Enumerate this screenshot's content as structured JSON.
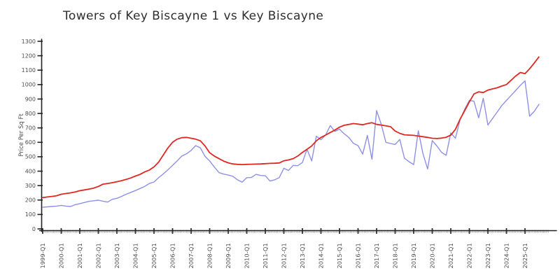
{
  "title": "Towers of Key Biscayne 1 vs Key Biscayne",
  "chart_data": {
    "type": "line",
    "title": "Towers of Key Biscayne 1 vs Key Biscayne",
    "xlabel": "",
    "ylabel": "Price Per Sq Ft",
    "ylim": [
      0,
      1300
    ],
    "y_ticks": [
      0,
      100,
      200,
      300,
      400,
      500,
      600,
      700,
      800,
      900,
      1000,
      1100,
      1200,
      1300
    ],
    "x_tick_labels": [
      "1999-Q1",
      "2000-Q1",
      "2001-Q1",
      "2002-Q1",
      "2003-Q1",
      "2004-Q1",
      "2005-Q1",
      "2006-Q1",
      "2007-Q1",
      "2008-Q1",
      "2009-Q1",
      "2010-Q1",
      "2011-Q1",
      "2012-Q1",
      "2013-Q1",
      "2014-Q1",
      "2015-Q1",
      "2016-Q1",
      "2017-Q1",
      "2018-Q1",
      "2019-Q1",
      "2020-Q1",
      "2021-Q1",
      "2022-Q1",
      "2023-Q1",
      "2024-Q1",
      "2025-Q1"
    ],
    "x_start_year": 1999.0,
    "x_step_years": 0.25,
    "grid": false,
    "legend_position": "none",
    "style": "xkcd-sketch",
    "axis_color": "#222222",
    "tick_label_color": "#4d4d4d",
    "series": [
      {
        "name": "Towers of Key Biscayne 1",
        "color": "#8e90e8",
        "values": [
          150,
          153,
          155,
          158,
          163,
          158,
          155,
          168,
          175,
          183,
          191,
          195,
          199,
          192,
          186,
          205,
          212,
          225,
          240,
          253,
          266,
          280,
          295,
          315,
          325,
          355,
          381,
          410,
          440,
          471,
          505,
          520,
          544,
          577,
          561,
          503,
          470,
          430,
          390,
          380,
          373,
          365,
          340,
          324,
          355,
          356,
          378,
          370,
          368,
          332,
          340,
          355,
          420,
          405,
          440,
          438,
          460,
          552,
          471,
          642,
          618,
          650,
          716,
          675,
          691,
          659,
          634,
          593,
          577,
          518,
          648,
          482,
          820,
          725,
          600,
          592,
          585,
          620,
          490,
          465,
          446,
          680,
          520,
          415,
          612,
          575,
          530,
          510,
          665,
          628,
          757,
          830,
          890,
          885,
          770,
          905,
          720,
          765,
          810,
          855,
          890,
          925,
          960,
          995,
          1026,
          781,
          815,
          863
        ]
      },
      {
        "name": "Key Biscayne",
        "color": "#e02721",
        "values": [
          217,
          221,
          225,
          230,
          240,
          245,
          250,
          256,
          265,
          270,
          276,
          283,
          294,
          310,
          315,
          320,
          327,
          334,
          343,
          353,
          366,
          378,
          395,
          408,
          430,
          463,
          512,
          561,
          600,
          622,
          632,
          634,
          628,
          622,
          610,
          575,
          528,
          505,
          487,
          470,
          458,
          450,
          447,
          446,
          447,
          448,
          449,
          450,
          452,
          454,
          455,
          457,
          472,
          478,
          487,
          505,
          530,
          552,
          575,
          610,
          634,
          650,
          668,
          685,
          705,
          718,
          724,
          730,
          726,
          722,
          730,
          736,
          724,
          720,
          714,
          708,
          678,
          662,
          652,
          650,
          648,
          643,
          639,
          634,
          628,
          626,
          629,
          635,
          650,
          690,
          760,
          820,
          880,
          935,
          950,
          945,
          962,
          970,
          978,
          990,
          1000,
          1030,
          1060,
          1084,
          1076,
          1110,
          1150,
          1192
        ]
      }
    ]
  }
}
